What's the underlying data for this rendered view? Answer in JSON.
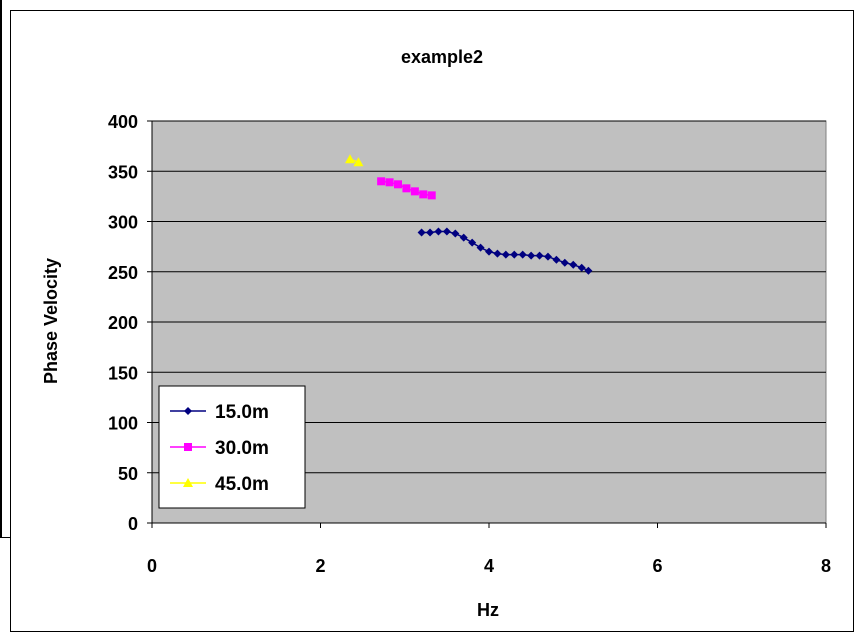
{
  "chart_data": {
    "type": "scatter",
    "title": "example2",
    "xlabel": "Hz",
    "ylabel": "Phase Velocity",
    "xlim": [
      0,
      8
    ],
    "ylim": [
      0,
      400
    ],
    "xticks": [
      0,
      2,
      4,
      6,
      8
    ],
    "yticks": [
      0,
      50,
      100,
      150,
      200,
      250,
      300,
      350,
      400
    ],
    "grid": "horizontal",
    "plot_background": "#c0c0c0",
    "legend_position": "bottom-left",
    "series": [
      {
        "name": "15.0m",
        "color": "#000080",
        "marker": "diamond",
        "line": true,
        "x": [
          3.2,
          3.3,
          3.4,
          3.5,
          3.6,
          3.7,
          3.8,
          3.9,
          4.0,
          4.1,
          4.2,
          4.3,
          4.4,
          4.5,
          4.6,
          4.7,
          4.8,
          4.9,
          5.0,
          5.1,
          5.18
        ],
        "y": [
          289,
          289,
          290,
          290,
          288,
          284,
          279,
          274,
          270,
          268,
          267,
          267,
          267,
          266,
          266,
          265,
          262,
          259,
          257,
          254,
          251
        ]
      },
      {
        "name": "30.0m",
        "color": "#ff00ff",
        "marker": "square",
        "line": true,
        "x": [
          2.72,
          2.82,
          2.92,
          3.02,
          3.12,
          3.22,
          3.32
        ],
        "y": [
          340,
          339,
          337,
          333,
          330,
          327,
          326
        ]
      },
      {
        "name": "45.0m",
        "color": "#ffff00",
        "marker": "triangle",
        "line": true,
        "x": [
          2.35,
          2.45
        ],
        "y": [
          362,
          359
        ]
      }
    ]
  }
}
